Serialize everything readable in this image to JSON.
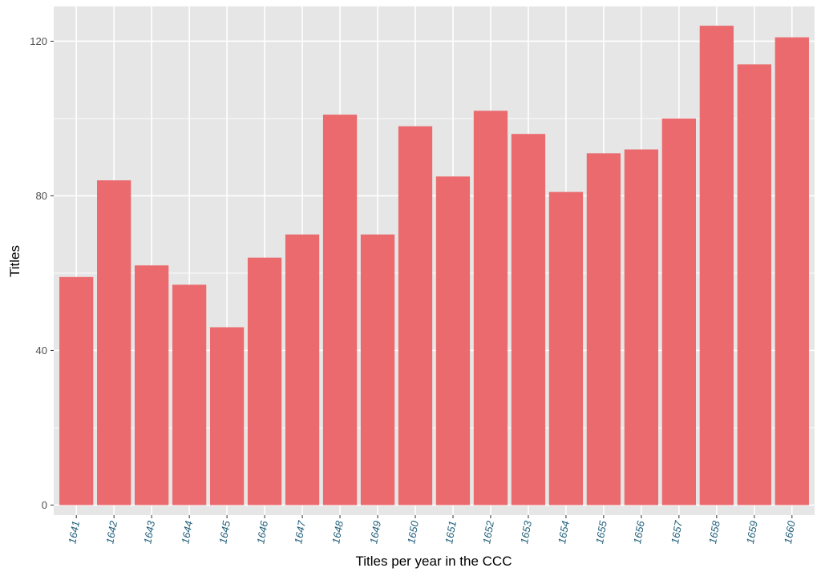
{
  "chart_data": {
    "type": "bar",
    "title": "",
    "xlabel": "Titles per year in the CCC",
    "ylabel": "Titles",
    "categories": [
      "1641",
      "1642",
      "1643",
      "1644",
      "1645",
      "1646",
      "1647",
      "1648",
      "1649",
      "1650",
      "1651",
      "1652",
      "1653",
      "1654",
      "1655",
      "1656",
      "1657",
      "1658",
      "1659",
      "1660"
    ],
    "values": [
      59,
      84,
      62,
      57,
      46,
      64,
      70,
      101,
      70,
      98,
      85,
      102,
      96,
      81,
      91,
      92,
      100,
      124,
      114,
      121
    ],
    "yticks": [
      "0",
      "40",
      "80",
      "120"
    ],
    "ylim": [
      -2.6,
      129
    ],
    "grid": true,
    "legend": "none",
    "colors": {
      "bar": "#ea6a6d",
      "panel": "#e6e6e6",
      "grid": "#ffffff",
      "x_tick_text": "#1f5f7a",
      "y_tick_text": "#4d4d4d"
    }
  }
}
